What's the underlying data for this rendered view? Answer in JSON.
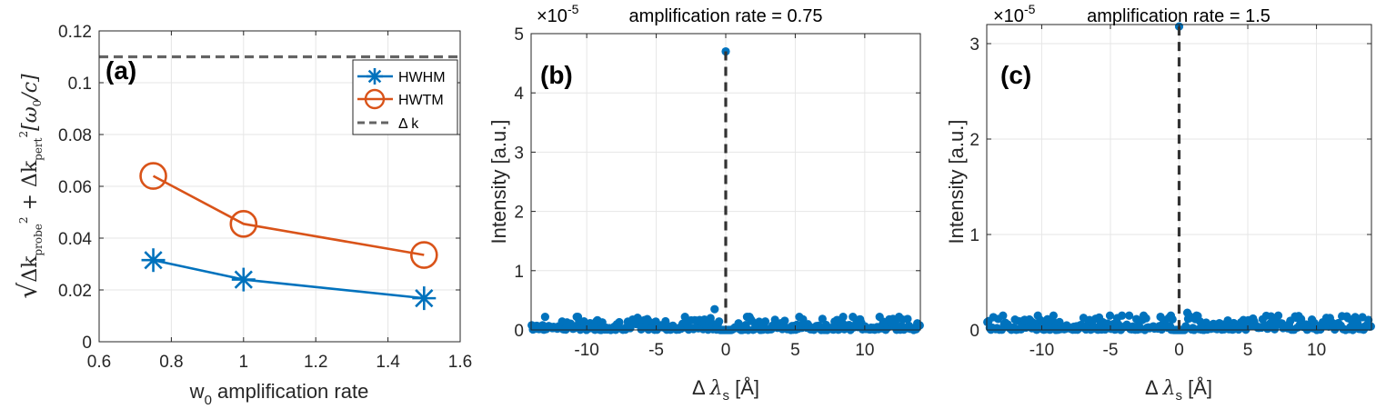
{
  "colors": {
    "blue": "#0072BD",
    "orange": "#D95319",
    "gray": "#646464",
    "dash": "#333333"
  },
  "chart_data": [
    {
      "type": "line",
      "panel": "(a)",
      "xlabel_text": "w",
      "xlabel_sub": "0",
      "xlabel_rest": " amplification rate",
      "ylabel": {
        "root": "√",
        "dk": "Δk",
        "probe": "probe",
        "sq": "2",
        "plus": " + Δk",
        "pert": "pert",
        "unit": "[ω",
        "unit_sub": "0",
        "unit_end": "/c]"
      },
      "xlim": [
        0.6,
        1.6
      ],
      "ylim": [
        0,
        0.12
      ],
      "xticks": [
        0.6,
        0.8,
        1,
        1.2,
        1.4,
        1.6
      ],
      "xtick_labels": [
        "0.6",
        "0.8",
        "1",
        "1.2",
        "1.4",
        "1.6"
      ],
      "yticks": [
        0,
        0.02,
        0.04,
        0.06,
        0.08,
        0.1,
        0.12
      ],
      "ytick_labels": [
        "0",
        "0.02",
        "0.04",
        "0.06",
        "0.08",
        "0.1",
        "0.12"
      ],
      "grid": true,
      "legend_position": "top-right",
      "x": [
        0.75,
        1.0,
        1.5
      ],
      "series": [
        {
          "name": "HWHM",
          "marker": "asterisk",
          "color": "#0072BD",
          "values": [
            0.0315,
            0.024,
            0.0168
          ]
        },
        {
          "name": "HWTM",
          "marker": "circle",
          "color": "#D95319",
          "values": [
            0.064,
            0.0455,
            0.0335
          ]
        }
      ],
      "reference_line": {
        "name": "Δ k",
        "y": 0.11,
        "style": "dashed",
        "color": "#646464"
      }
    },
    {
      "type": "scatter",
      "panel": "(b)",
      "title": "amplification rate = 0.75",
      "exponent_label": "×10",
      "exponent": "-5",
      "xlabel_text": "Δ ",
      "xlabel_sym": "λ",
      "xlabel_sub": "s",
      "xlabel_unit": " [Å]",
      "ylabel": "Intensity [a.u.]",
      "xlim": [
        -14,
        14
      ],
      "ylim": [
        0,
        5
      ],
      "xticks": [
        -10,
        -5,
        0,
        5,
        10
      ],
      "xtick_labels": [
        "-10",
        "-5",
        "0",
        "5",
        "10"
      ],
      "yticks": [
        0,
        1,
        2,
        3,
        4,
        5
      ],
      "ytick_labels": [
        "0",
        "1",
        "2",
        "3",
        "4",
        "5"
      ],
      "grid": true,
      "peak": {
        "x": 0,
        "y": 4.7
      },
      "secondary": [
        {
          "x": -0.8,
          "y": 0.35
        }
      ],
      "noise_level": 0.22,
      "noise_points": 320,
      "seed": 7,
      "vline_x": 0
    },
    {
      "type": "scatter",
      "panel": "(c)",
      "title": "amplification rate = 1.5",
      "exponent_label": "×10",
      "exponent": "-5",
      "xlabel_text": "Δ ",
      "xlabel_sym": "λ",
      "xlabel_sub": "s",
      "xlabel_unit": " [Å]",
      "ylabel": "Intensity [a.u.]",
      "xlim": [
        -14,
        14
      ],
      "ylim": [
        0,
        3.2
      ],
      "xticks": [
        -10,
        -5,
        0,
        5,
        10
      ],
      "xtick_labels": [
        "-10",
        "-5",
        "0",
        "5",
        "10"
      ],
      "yticks": [
        0,
        1,
        2,
        3
      ],
      "ytick_labels": [
        "0",
        "1",
        "2",
        "3"
      ],
      "grid": true,
      "peak": {
        "x": 0,
        "y": 3.18
      },
      "secondary": [
        {
          "x": -0.6,
          "y": 0.15
        },
        {
          "x": 0.6,
          "y": 0.18
        }
      ],
      "noise_level": 0.15,
      "noise_points": 320,
      "seed": 13,
      "vline_x": 0
    }
  ]
}
